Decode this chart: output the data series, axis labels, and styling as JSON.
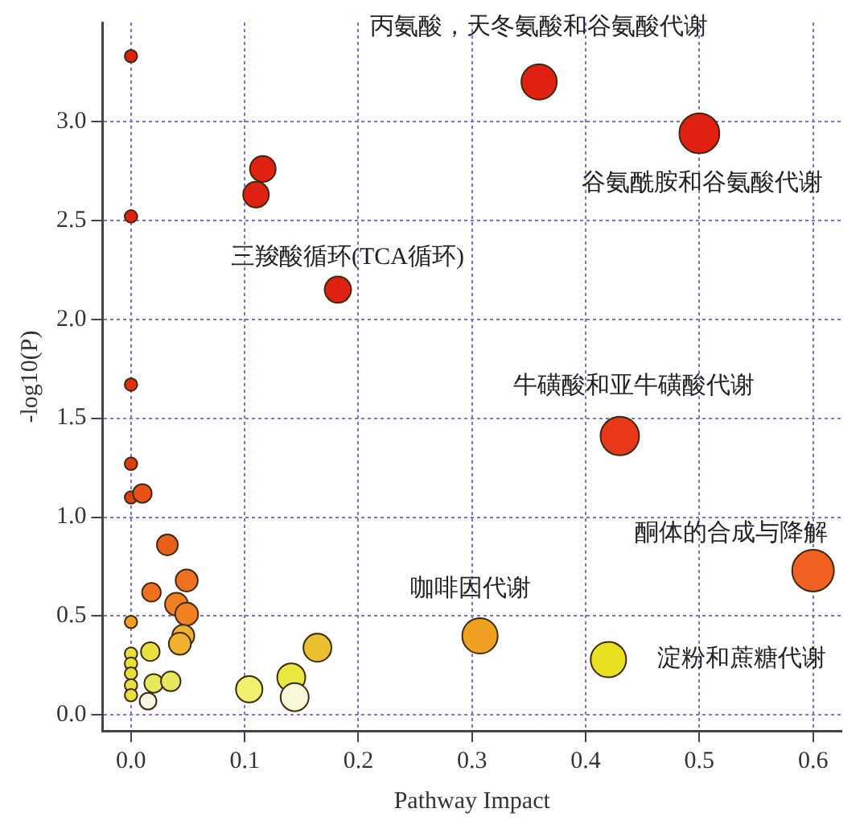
{
  "chart_data": {
    "type": "bubble",
    "xlabel": "Pathway Impact",
    "ylabel": "-log10(P)",
    "x": [
      0,
      0.116,
      0.11,
      0,
      0.182,
      0,
      0.359,
      0.5,
      0.43,
      0.6,
      0.307,
      0.42,
      0,
      0,
      0.01,
      0.032,
      0.049,
      0.018,
      0.04,
      0.049,
      0,
      0.046,
      0.043,
      0,
      0,
      0,
      0,
      0,
      0.017,
      0.02,
      0.035,
      0.015,
      0.104,
      0.141,
      0.144,
      0.164
    ],
    "values": [
      3.33,
      2.76,
      2.63,
      2.52,
      2.15,
      1.67,
      3.2,
      2.94,
      1.41,
      0.73,
      0.4,
      0.28,
      1.27,
      1.1,
      1.12,
      0.86,
      0.68,
      0.62,
      0.56,
      0.51,
      0.47,
      0.4,
      0.36,
      0.31,
      0.26,
      0.21,
      0.15,
      0.1,
      0.32,
      0.16,
      0.17,
      0.07,
      0.13,
      0.19,
      0.09,
      0.34
    ],
    "sizes": [
      0.09,
      0.38,
      0.38,
      0.09,
      0.4,
      0.09,
      0.72,
      0.92,
      0.85,
      1,
      0.72,
      0.72,
      0.09,
      0.09,
      0.2,
      0.25,
      0.28,
      0.2,
      0.3,
      0.3,
      0.09,
      0.28,
      0.28,
      0.09,
      0.09,
      0.09,
      0.09,
      0.09,
      0.2,
      0.2,
      0.22,
      0.16,
      0.4,
      0.45,
      0.45,
      0.45
    ],
    "colors": [
      "#e02010",
      "#e02010",
      "#e02010",
      "#e02010",
      "#e02010",
      "#e03010",
      "#e02010",
      "#e02010",
      "#e83818",
      "#f06020",
      "#f0a020",
      "#e8e020",
      "#e04010",
      "#e04010",
      "#e85018",
      "#e86018",
      "#f07020",
      "#f07020",
      "#f08020",
      "#f08020",
      "#f0a020",
      "#f0b030",
      "#f0b030",
      "#e8e040",
      "#e8e040",
      "#e8e040",
      "#e8e040",
      "#e8e040",
      "#e8e040",
      "#e8e860",
      "#e8e860",
      "#f8f8e0",
      "#f0f070",
      "#e8e840",
      "#f8f8d8",
      "#e8c030"
    ],
    "xlim": [
      -0.025,
      0.625
    ],
    "ylim": [
      -0.08,
      3.5
    ],
    "xticks": [
      {
        "value": 0,
        "label": "0.0"
      },
      {
        "value": 0.1,
        "label": "0.1"
      },
      {
        "value": 0.2,
        "label": "0.2"
      },
      {
        "value": 0.3,
        "label": "0.3"
      },
      {
        "value": 0.4,
        "label": "0.4"
      },
      {
        "value": 0.5,
        "label": "0.5"
      },
      {
        "value": 0.6,
        "label": "0.6"
      }
    ],
    "yticks": [
      {
        "value": 0,
        "label": "0.0"
      },
      {
        "value": 0.5,
        "label": "0.5"
      },
      {
        "value": 1,
        "label": "1.0"
      },
      {
        "value": 1.5,
        "label": "1.5"
      },
      {
        "value": 2,
        "label": "2.0"
      },
      {
        "value": 2.5,
        "label": "2.5"
      },
      {
        "value": 3,
        "label": "3.0"
      }
    ],
    "grid": true,
    "legend": false,
    "marker": "circle",
    "annotations": [
      {
        "text": "丙氨酸，天冬氨酸和谷氨酸代谢",
        "x": 0.359,
        "y": 3.2
      },
      {
        "text": "谷氨酰胺和谷氨酸代谢",
        "x": 0.5,
        "y": 2.94
      },
      {
        "text": "三羧酸循环(TCA循环)",
        "x": 0.182,
        "y": 2.15
      },
      {
        "text": "牛磺酸和亚牛磺酸代谢",
        "x": 0.43,
        "y": 1.41
      },
      {
        "text": "酮体的合成与降解",
        "x": 0.6,
        "y": 0.73
      },
      {
        "text": "咖啡因代谢",
        "x": 0.307,
        "y": 0.4
      },
      {
        "text": "淀粉和蔗糖代谢",
        "x": 0.42,
        "y": 0.28
      }
    ]
  }
}
